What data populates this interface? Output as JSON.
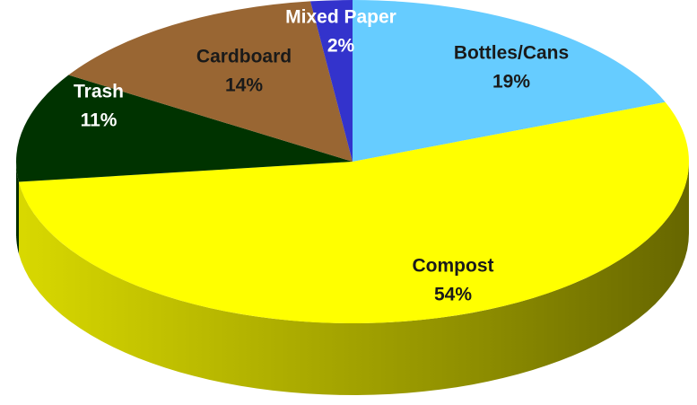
{
  "chart_data": {
    "type": "pie",
    "categories": [
      "Bottles/Cans",
      "Compost",
      "Trash",
      "Cardboard",
      "Mixed Paper"
    ],
    "values": [
      19,
      54,
      11,
      14,
      2
    ],
    "value_labels": [
      "19%",
      "54%",
      "11%",
      "14%",
      "2%"
    ],
    "colors": [
      "#66ccff",
      "#ffff00",
      "#003300",
      "#996633",
      "#3333cc"
    ]
  }
}
